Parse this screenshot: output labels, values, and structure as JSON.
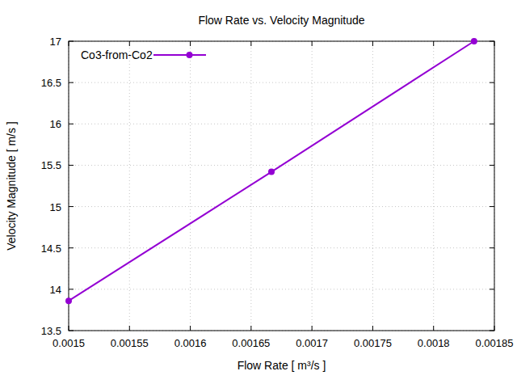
{
  "chart_data": {
    "type": "line",
    "title": "Flow Rate vs. Velocity Magnitude",
    "x_label": "Flow Rate [ m³/s ]",
    "y_label": "Velocity Magnitude [ m/s ]",
    "x": [
      0.0015,
      0.0016667,
      0.0018333
    ],
    "series": [
      {
        "name": "Co3-from-Co2",
        "color": "#9400d3",
        "values": [
          13.86,
          15.42,
          17.0
        ],
        "marker": "circle",
        "line_style": "solid"
      }
    ],
    "xlim": [
      0.0015,
      0.00185
    ],
    "ylim": [
      13.5,
      17
    ],
    "xticks": [
      0.0015,
      0.00155,
      0.0016,
      0.00165,
      0.0017,
      0.00175,
      0.0018,
      0.00185
    ],
    "yticks": [
      13.5,
      14,
      14.5,
      15,
      15.5,
      16,
      16.5,
      17
    ],
    "grid": true,
    "legend": "top left"
  }
}
